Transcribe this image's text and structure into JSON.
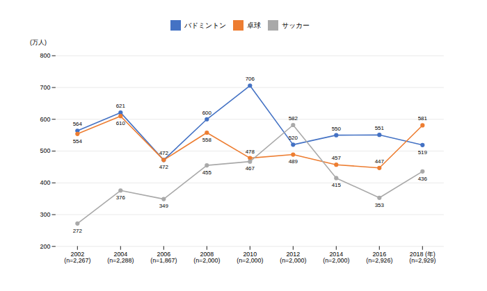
{
  "chart_data": {
    "type": "line",
    "categories": [
      "2002\n(n=2,267)",
      "2004\n(n=2,288)",
      "2006\n(n=1,867)",
      "2008\n(n=2,000)",
      "2010\n(n=2,000)",
      "2012\n(n=2,000)",
      "2014\n(n=2,000)",
      "2016\n(n=2,926)",
      "2018 (年)\n(n=2,929)"
    ],
    "series": [
      {
        "name": "バドミントン",
        "color": "#4472C4",
        "values": [
          564,
          621,
          472,
          600,
          706,
          520,
          550,
          551,
          519
        ]
      },
      {
        "name": "卓球",
        "color": "#ED7D31",
        "values": [
          554,
          610,
          472,
          558,
          478,
          489,
          457,
          447,
          581
        ]
      },
      {
        "name": "サッカー",
        "color": "#A9A9A9",
        "values": [
          272,
          376,
          349,
          455,
          467,
          582,
          415,
          353,
          436
        ]
      }
    ],
    "ylabel": "(万人)",
    "ylim": [
      200,
      800
    ],
    "yticks": [
      200,
      300,
      400,
      500,
      600,
      700,
      800
    ],
    "grid": true,
    "legend": "top",
    "data_labels": true,
    "marker": "circle"
  }
}
